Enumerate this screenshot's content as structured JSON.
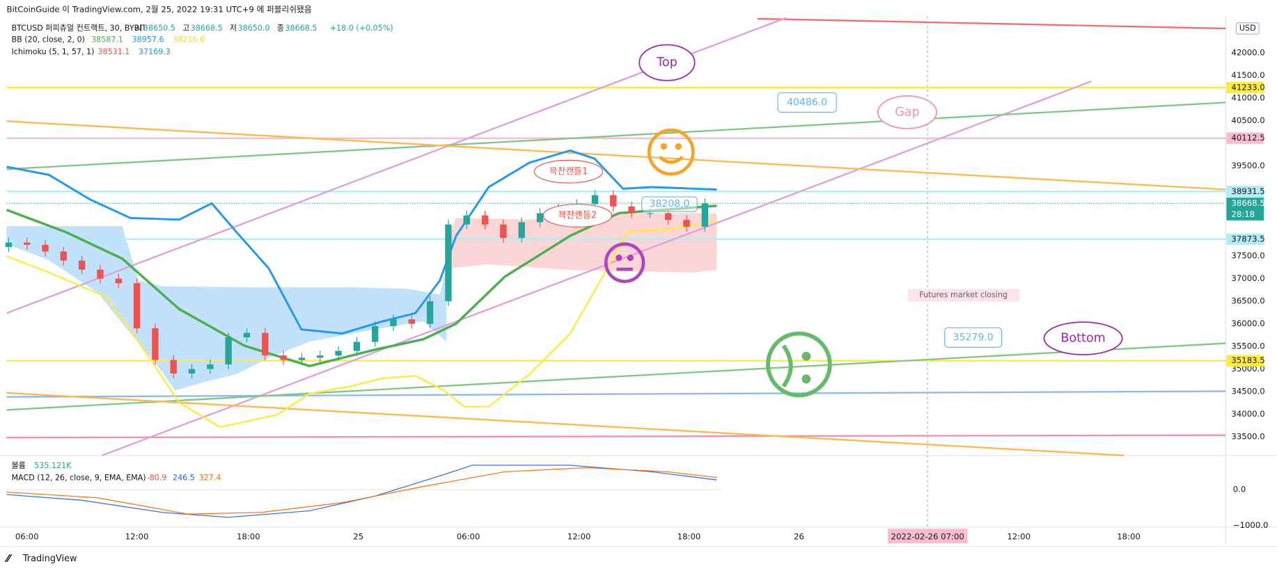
{
  "header": {
    "publish": "BitCoinGuide 이 TradingView.com, 2월 25, 2022 19:31 UTC+9 에 퍼블리쉬됐음"
  },
  "legend": {
    "symbol": "BTCUSD 퍼피츄얼 컨트랙트, 30, BYBIT",
    "ohlc": [
      "시",
      "38650.5",
      "고",
      "38668.5",
      "저",
      "38650.0",
      "종",
      "38668.5"
    ],
    "change": "+18.0 (+0.05%)",
    "bb": {
      "label": "BB (20, close, 2, 0)",
      "values": [
        "38587.1",
        "38957.6",
        "38216.6"
      ]
    },
    "ichimoku": {
      "label": "Ichimoku (5, 1, 57, 1)",
      "values": [
        "38531.1",
        "37169.3"
      ]
    }
  },
  "price_axis": {
    "currency": "USD",
    "labels": [
      "42000.0",
      "41500.0",
      "41000.0",
      "40500.0",
      "39500.0",
      "37500.0",
      "37000.0",
      "36500.0",
      "36000.0",
      "35500.0",
      "35000.0",
      "34500.0",
      "34000.0",
      "33500.0"
    ]
  },
  "badges": [
    {
      "label": "41233.0",
      "color": "#ffeb3b"
    },
    {
      "label": "40112.5",
      "color": "#f8bbd0"
    },
    {
      "label": "38931.5",
      "color": "#b2ebf2"
    },
    {
      "label": "38668.5",
      "color": "#26a69a"
    },
    {
      "label": "37873.5",
      "color": "#b2ebf2"
    },
    {
      "label": "35183.5",
      "color": "#ffeb3b"
    }
  ],
  "countdown": "28:18",
  "time_axis": {
    "labels": [
      "06:00",
      "12:00",
      "18:00",
      "25",
      "06:00",
      "12:00",
      "18:00",
      "26",
      "2022-02-26   07:00",
      "12:00",
      "18:00"
    ]
  },
  "annotations": {
    "top": "Top",
    "gap": "Gap",
    "bottom": "Bottom",
    "price1": "40486.0",
    "price2": "35279.0",
    "price3": "38208.0",
    "candle1": "꽉찬캔들1",
    "candle2": "꽉찬캔들2",
    "closing": "Futures market closing"
  },
  "candles": {
    "open": 37700,
    "closes": [
      37800,
      37750,
      37600,
      37400,
      37200,
      37000,
      36900,
      35900,
      35200,
      34900,
      35000,
      35100,
      35700,
      35800,
      35300,
      35200,
      35250,
      35300,
      35400,
      35600,
      35950,
      36100,
      36000,
      36500,
      38200,
      38400,
      38200,
      37900,
      38250,
      38450,
      38550,
      38650,
      38850,
      38600,
      38450,
      38450,
      38300,
      38150,
      38668.5
    ]
  },
  "volume": {
    "label": "볼륨",
    "value": "535.121K"
  },
  "macd": {
    "label": "MACD (12, 26, close, 9, EMA, EMA)",
    "values": [
      "-80.9",
      "246.5",
      "327.4"
    ],
    "axis": [
      "0.0",
      "−1000.0"
    ]
  },
  "footer": "TradingView"
}
